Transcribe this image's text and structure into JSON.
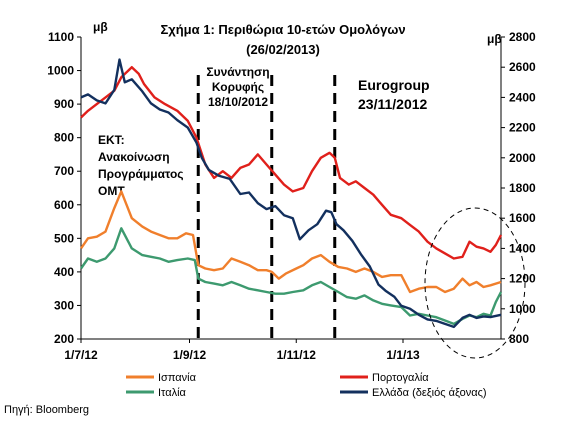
{
  "chart_data": {
    "type": "line",
    "title": "Σχήμα 1: Περιθώρια 10-ετών Ομολόγων",
    "subtitle": "(26/02/2013)",
    "left_unit": "μβ",
    "right_unit": "μβ",
    "left_axis": {
      "min": 200,
      "max": 1100,
      "ticks": [
        200,
        300,
        400,
        500,
        600,
        700,
        800,
        900,
        1000,
        1100
      ]
    },
    "right_axis": {
      "min": 800,
      "max": 2800,
      "ticks": [
        800,
        1000,
        1200,
        1400,
        1600,
        1800,
        2000,
        2200,
        2400,
        2600,
        2800
      ]
    },
    "x_axis": {
      "start": "2012-07-01",
      "end": "2013-02-26",
      "ticks": [
        {
          "date": "2012-07-01",
          "label": "1/7/12"
        },
        {
          "date": "2012-09-01",
          "label": "1/9/12"
        },
        {
          "date": "2012-11-01",
          "label": "1/11/12"
        },
        {
          "date": "2013-01-01",
          "label": "1/1/13"
        }
      ]
    },
    "grid": false,
    "legend_position": "bottom",
    "series": [
      {
        "name": "Ισπανία",
        "axis": "left",
        "color": "#f07f2c",
        "points": [
          [
            "2012-07-01",
            470
          ],
          [
            "2012-07-05",
            500
          ],
          [
            "2012-07-10",
            505
          ],
          [
            "2012-07-15",
            520
          ],
          [
            "2012-07-20",
            590
          ],
          [
            "2012-07-24",
            640
          ],
          [
            "2012-07-30",
            560
          ],
          [
            "2012-08-05",
            535
          ],
          [
            "2012-08-10",
            520
          ],
          [
            "2012-08-15",
            510
          ],
          [
            "2012-08-20",
            500
          ],
          [
            "2012-08-25",
            500
          ],
          [
            "2012-08-30",
            515
          ],
          [
            "2012-09-03",
            510
          ],
          [
            "2012-09-06",
            420
          ],
          [
            "2012-09-10",
            410
          ],
          [
            "2012-09-15",
            405
          ],
          [
            "2012-09-20",
            410
          ],
          [
            "2012-09-25",
            440
          ],
          [
            "2012-09-30",
            430
          ],
          [
            "2012-10-05",
            420
          ],
          [
            "2012-10-10",
            405
          ],
          [
            "2012-10-15",
            405
          ],
          [
            "2012-10-18",
            400
          ],
          [
            "2012-10-22",
            380
          ],
          [
            "2012-10-26",
            395
          ],
          [
            "2012-11-01",
            410
          ],
          [
            "2012-11-05",
            420
          ],
          [
            "2012-11-10",
            440
          ],
          [
            "2012-11-15",
            450
          ],
          [
            "2012-11-20",
            430
          ],
          [
            "2012-11-25",
            415
          ],
          [
            "2012-11-30",
            410
          ],
          [
            "2012-12-05",
            400
          ],
          [
            "2012-12-10",
            410
          ],
          [
            "2012-12-15",
            400
          ],
          [
            "2012-12-20",
            385
          ],
          [
            "2012-12-25",
            390
          ],
          [
            "2012-12-31",
            390
          ],
          [
            "2013-01-05",
            340
          ],
          [
            "2013-01-10",
            350
          ],
          [
            "2013-01-15",
            355
          ],
          [
            "2013-01-20",
            355
          ],
          [
            "2013-01-25",
            340
          ],
          [
            "2013-01-30",
            350
          ],
          [
            "2013-02-04",
            380
          ],
          [
            "2013-02-08",
            360
          ],
          [
            "2013-02-12",
            370
          ],
          [
            "2013-02-16",
            355
          ],
          [
            "2013-02-20",
            360
          ],
          [
            "2013-02-26",
            370
          ]
        ]
      },
      {
        "name": "Πορτογαλία",
        "axis": "left",
        "color": "#e0201b",
        "points": [
          [
            "2012-07-01",
            860
          ],
          [
            "2012-07-05",
            880
          ],
          [
            "2012-07-10",
            900
          ],
          [
            "2012-07-15",
            920
          ],
          [
            "2012-07-20",
            940
          ],
          [
            "2012-07-24",
            980
          ],
          [
            "2012-07-30",
            1010
          ],
          [
            "2012-08-03",
            990
          ],
          [
            "2012-08-06",
            960
          ],
          [
            "2012-08-12",
            920
          ],
          [
            "2012-08-18",
            900
          ],
          [
            "2012-08-25",
            880
          ],
          [
            "2012-08-31",
            850
          ],
          [
            "2012-09-05",
            800
          ],
          [
            "2012-09-10",
            720
          ],
          [
            "2012-09-15",
            680
          ],
          [
            "2012-09-20",
            700
          ],
          [
            "2012-09-25",
            680
          ],
          [
            "2012-09-30",
            710
          ],
          [
            "2012-10-05",
            720
          ],
          [
            "2012-10-10",
            750
          ],
          [
            "2012-10-15",
            720
          ],
          [
            "2012-10-20",
            690
          ],
          [
            "2012-10-25",
            660
          ],
          [
            "2012-10-30",
            640
          ],
          [
            "2012-11-05",
            650
          ],
          [
            "2012-11-10",
            700
          ],
          [
            "2012-11-15",
            740
          ],
          [
            "2012-11-20",
            755
          ],
          [
            "2012-11-23",
            740
          ],
          [
            "2012-11-26",
            680
          ],
          [
            "2012-12-01",
            660
          ],
          [
            "2012-12-05",
            670
          ],
          [
            "2012-12-10",
            650
          ],
          [
            "2012-12-15",
            630
          ],
          [
            "2012-12-20",
            600
          ],
          [
            "2012-12-25",
            570
          ],
          [
            "2012-12-31",
            560
          ],
          [
            "2013-01-05",
            540
          ],
          [
            "2013-01-10",
            520
          ],
          [
            "2013-01-15",
            490
          ],
          [
            "2013-01-20",
            470
          ],
          [
            "2013-01-25",
            455
          ],
          [
            "2013-01-30",
            440
          ],
          [
            "2013-02-04",
            445
          ],
          [
            "2013-02-08",
            490
          ],
          [
            "2013-02-12",
            475
          ],
          [
            "2013-02-16",
            470
          ],
          [
            "2013-02-20",
            460
          ],
          [
            "2013-02-23",
            480
          ],
          [
            "2013-02-26",
            510
          ]
        ]
      },
      {
        "name": "Ιταλία",
        "axis": "left",
        "color": "#3d9a6f",
        "points": [
          [
            "2012-07-01",
            410
          ],
          [
            "2012-07-05",
            440
          ],
          [
            "2012-07-10",
            430
          ],
          [
            "2012-07-15",
            440
          ],
          [
            "2012-07-20",
            470
          ],
          [
            "2012-07-24",
            530
          ],
          [
            "2012-07-30",
            470
          ],
          [
            "2012-08-05",
            450
          ],
          [
            "2012-08-10",
            445
          ],
          [
            "2012-08-15",
            440
          ],
          [
            "2012-08-20",
            430
          ],
          [
            "2012-08-25",
            435
          ],
          [
            "2012-08-31",
            440
          ],
          [
            "2012-09-04",
            435
          ],
          [
            "2012-09-06",
            380
          ],
          [
            "2012-09-10",
            370
          ],
          [
            "2012-09-15",
            365
          ],
          [
            "2012-09-20",
            360
          ],
          [
            "2012-09-25",
            370
          ],
          [
            "2012-09-30",
            360
          ],
          [
            "2012-10-05",
            350
          ],
          [
            "2012-10-10",
            345
          ],
          [
            "2012-10-15",
            340
          ],
          [
            "2012-10-20",
            335
          ],
          [
            "2012-10-25",
            335
          ],
          [
            "2012-10-30",
            340
          ],
          [
            "2012-11-05",
            345
          ],
          [
            "2012-11-10",
            360
          ],
          [
            "2012-11-15",
            370
          ],
          [
            "2012-11-20",
            355
          ],
          [
            "2012-11-25",
            340
          ],
          [
            "2012-11-30",
            325
          ],
          [
            "2012-12-05",
            320
          ],
          [
            "2012-12-10",
            330
          ],
          [
            "2012-12-15",
            315
          ],
          [
            "2012-12-20",
            305
          ],
          [
            "2012-12-25",
            300
          ],
          [
            "2012-12-31",
            295
          ],
          [
            "2013-01-05",
            270
          ],
          [
            "2013-01-10",
            275
          ],
          [
            "2013-01-15",
            270
          ],
          [
            "2013-01-20",
            265
          ],
          [
            "2013-01-25",
            255
          ],
          [
            "2013-01-30",
            245
          ],
          [
            "2013-02-04",
            260
          ],
          [
            "2013-02-08",
            270
          ],
          [
            "2013-02-12",
            265
          ],
          [
            "2013-02-16",
            275
          ],
          [
            "2013-02-20",
            270
          ],
          [
            "2013-02-23",
            310
          ],
          [
            "2013-02-26",
            340
          ]
        ]
      },
      {
        "name": "Ελλάδα (δεξιός άξονας)",
        "axis": "right",
        "color": "#13305e",
        "points": [
          [
            "2012-07-01",
            2400
          ],
          [
            "2012-07-05",
            2420
          ],
          [
            "2012-07-10",
            2380
          ],
          [
            "2012-07-15",
            2360
          ],
          [
            "2012-07-20",
            2450
          ],
          [
            "2012-07-23",
            2650
          ],
          [
            "2012-07-26",
            2500
          ],
          [
            "2012-07-30",
            2520
          ],
          [
            "2012-08-05",
            2440
          ],
          [
            "2012-08-10",
            2360
          ],
          [
            "2012-08-15",
            2320
          ],
          [
            "2012-08-20",
            2300
          ],
          [
            "2012-08-25",
            2250
          ],
          [
            "2012-08-31",
            2200
          ],
          [
            "2012-09-05",
            2100
          ],
          [
            "2012-09-08",
            2000
          ],
          [
            "2012-09-12",
            1920
          ],
          [
            "2012-09-18",
            1880
          ],
          [
            "2012-09-24",
            1860
          ],
          [
            "2012-09-30",
            1760
          ],
          [
            "2012-10-05",
            1770
          ],
          [
            "2012-10-10",
            1700
          ],
          [
            "2012-10-15",
            1660
          ],
          [
            "2012-10-20",
            1680
          ],
          [
            "2012-10-25",
            1620
          ],
          [
            "2012-10-30",
            1600
          ],
          [
            "2012-11-03",
            1460
          ],
          [
            "2012-11-08",
            1520
          ],
          [
            "2012-11-13",
            1560
          ],
          [
            "2012-11-18",
            1650
          ],
          [
            "2012-11-21",
            1640
          ],
          [
            "2012-11-24",
            1560
          ],
          [
            "2012-11-28",
            1520
          ],
          [
            "2012-12-03",
            1450
          ],
          [
            "2012-12-08",
            1360
          ],
          [
            "2012-12-13",
            1280
          ],
          [
            "2012-12-18",
            1160
          ],
          [
            "2012-12-22",
            1120
          ],
          [
            "2012-12-27",
            1080
          ],
          [
            "2012-12-31",
            1020
          ],
          [
            "2013-01-05",
            1000
          ],
          [
            "2013-01-10",
            960
          ],
          [
            "2013-01-15",
            930
          ],
          [
            "2013-01-20",
            920
          ],
          [
            "2013-01-25",
            900
          ],
          [
            "2013-01-30",
            880
          ],
          [
            "2013-02-04",
            940
          ],
          [
            "2013-02-08",
            960
          ],
          [
            "2013-02-12",
            940
          ],
          [
            "2013-02-16",
            950
          ],
          [
            "2013-02-20",
            945
          ],
          [
            "2013-02-26",
            960
          ]
        ]
      }
    ],
    "event_lines": [
      {
        "date": "2012-09-06",
        "label": "ΕΚΤ: Ανακοίνωση Προγράμματος OMT",
        "lines": [
          "ΕΚΤ:",
          "Ανακοίνωση",
          "Προγράμματος",
          "OMT"
        ]
      },
      {
        "date": "2012-10-18",
        "label": "Συνάντηση Κορυφής 18/10/2012",
        "lines": [
          "Συνάντηση",
          "Κορυφής",
          "18/10/2012"
        ]
      },
      {
        "date": "2012-11-23",
        "label": "Eurogroup 23/11/2012",
        "lines": [
          "Eurogroup",
          "23/11/2012"
        ]
      }
    ],
    "highlight": {
      "shape": "ellipse",
      "style": "dashed",
      "from": "2013-01-25",
      "to": "2013-02-26"
    }
  },
  "footer": {
    "source": "Πηγή: Bloomberg"
  }
}
